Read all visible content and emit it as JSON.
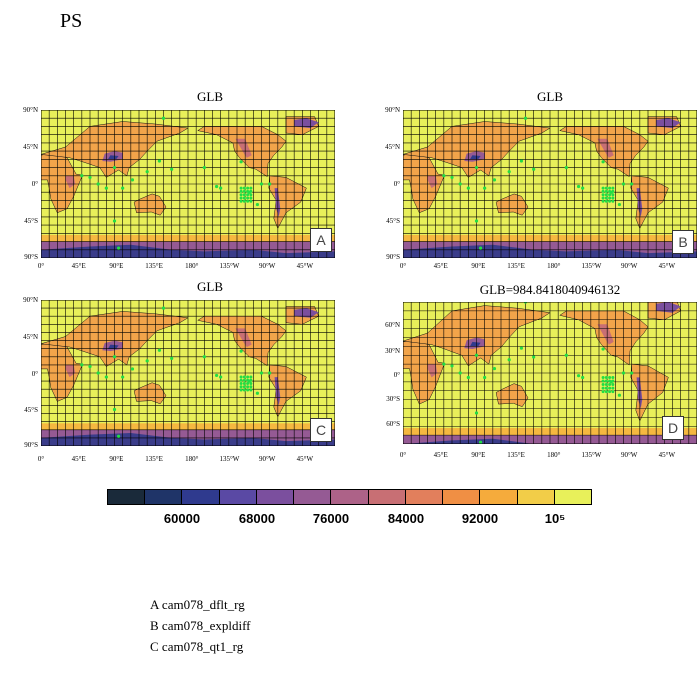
{
  "page_title": "PS",
  "panels": [
    {
      "title": "GLB",
      "letter": "A",
      "lat_labels": [
        "90°N",
        "45°N",
        "0°",
        "45°S",
        "90°S"
      ],
      "lat_range": [
        -90,
        90
      ]
    },
    {
      "title": "GLB",
      "letter": "B",
      "lat_labels": [
        "90°N",
        "45°N",
        "0°",
        "45°S",
        "90°S"
      ],
      "lat_range": [
        -90,
        90
      ]
    },
    {
      "title": "GLB",
      "letter": "C",
      "lat_labels": [
        "90°N",
        "45°N",
        "0°",
        "45°S",
        "90°S"
      ],
      "lat_range": [
        -90,
        90
      ]
    },
    {
      "title": "GLB=984.8418040946132",
      "letter": "D",
      "lat_labels": [
        "60°N",
        "30°N",
        "0°",
        "30°S",
        "60°S"
      ],
      "lat_range": [
        -80,
        80
      ]
    }
  ],
  "lon_labels": [
    "0°",
    "45°E",
    "90°E",
    "135°E",
    "180°",
    "135°W",
    "90°W",
    "45°W"
  ],
  "colorbar": {
    "colors": [
      "#1a2a3a",
      "#1f3468",
      "#2f3a8e",
      "#5a49a4",
      "#7b4f9e",
      "#955a94",
      "#ad6288",
      "#c86f74",
      "#e27f5c",
      "#f08f44",
      "#f5ab3c",
      "#f2cd48",
      "#e8f05a"
    ],
    "labels": [
      "60000",
      "68000",
      "76000",
      "84000",
      "92000",
      "10⁵"
    ]
  },
  "legend": [
    "A  cam078_dflt_rg",
    "B  cam078_expldiff",
    "C  cam078_qt1_rg"
  ],
  "colors": {
    "field_base": "#e8ef5a",
    "field_mid": "#f2cd48",
    "highland": "#c86f74",
    "deep": "#2f3a8e",
    "grid": "#000000",
    "markers": "#22dd44"
  }
}
